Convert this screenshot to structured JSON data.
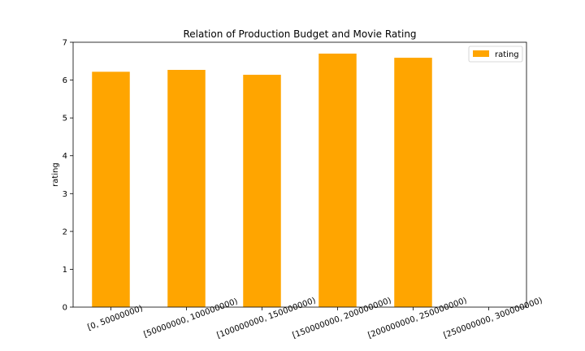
{
  "chart_data": {
    "type": "bar",
    "title": "Relation of Production Budget and Movie Rating",
    "xlabel": "",
    "ylabel": "rating",
    "categories": [
      "[0, 50000000)",
      "[50000000, 100000000)",
      "[100000000, 150000000)",
      "[150000000, 200000000)",
      "[200000000, 250000000)",
      "[250000000, 300000000)"
    ],
    "series": [
      {
        "name": "rating",
        "values": [
          6.22,
          6.27,
          6.14,
          6.7,
          6.59,
          null
        ],
        "color": "#ffa500"
      }
    ],
    "ylim": [
      0,
      7
    ],
    "yticks": [
      0,
      1,
      2,
      3,
      4,
      5,
      6,
      7
    ],
    "grid": false,
    "legend": "top-right"
  }
}
